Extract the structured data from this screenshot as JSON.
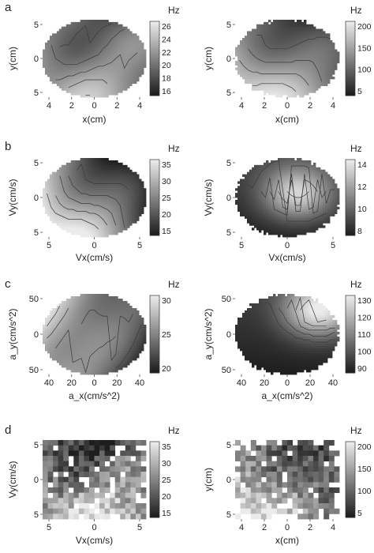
{
  "chart_data": [
    {
      "panel": "a",
      "side": "left",
      "type": "heatmap",
      "unit": "Hz",
      "xlabel": "x(cm)",
      "ylabel": "y(cm)",
      "xticks": [
        "4",
        "2",
        "0",
        "2",
        "4"
      ],
      "yticks": [
        "5",
        "0",
        "5"
      ],
      "cbticks": [
        "26",
        "24",
        "22",
        "20",
        "18",
        "16"
      ],
      "range": [
        16,
        26.5
      ],
      "shape": "ellipse",
      "style": "smooth",
      "grad": [
        [
          -0.1,
          0.35
        ],
        [
          0.9,
          -0.45
        ]
      ],
      "contours": 6
    },
    {
      "panel": "a",
      "side": "right",
      "type": "heatmap",
      "unit": "Hz",
      "xlabel": "x(cm)",
      "ylabel": "y(cm)",
      "xticks": [
        "4",
        "2",
        "0",
        "2",
        "4"
      ],
      "yticks": [
        "5",
        "0",
        "5"
      ],
      "cbticks": [
        "200",
        "150",
        "100",
        "5"
      ],
      "range": [
        5,
        200
      ],
      "shape": "blocky",
      "style": "smooth",
      "grad": [
        [
          -0.4,
          0.6
        ],
        [
          0.7,
          -0.4
        ]
      ],
      "contours": 5
    },
    {
      "panel": "b",
      "side": "left",
      "type": "heatmap",
      "unit": "Hz",
      "xlabel": "Vx(cm/s)",
      "ylabel": "Vy(cm/s)",
      "xticks": [
        "5",
        "0",
        "5"
      ],
      "yticks": [
        "5",
        "0",
        "5"
      ],
      "cbticks": [
        "35",
        "30",
        "25",
        "20",
        "15"
      ],
      "range": [
        12,
        38
      ],
      "shape": "ellipse",
      "style": "smooth",
      "grad": [
        [
          -0.9,
          0.6
        ],
        [
          0.9,
          -0.3
        ]
      ],
      "contours": 6
    },
    {
      "panel": "b",
      "side": "right",
      "type": "heatmap",
      "unit": "Hz",
      "xlabel": "Vx(cm/s)",
      "ylabel": "Vy(cm/s)",
      "xticks": [
        "5",
        "0",
        "5"
      ],
      "yticks": [
        "5",
        "0",
        "5"
      ],
      "cbticks": [
        "14",
        "12",
        "10",
        "8"
      ],
      "range": [
        7,
        14.5
      ],
      "shape": "blocky",
      "style": "peak",
      "grad": [
        [
          0.2,
          -0.1
        ],
        [
          0.8,
          0.7
        ]
      ],
      "contours": 6
    },
    {
      "panel": "c",
      "side": "left",
      "type": "heatmap",
      "unit": "Hz",
      "xlabel": "a_x(cm/s^2)",
      "ylabel": "a_y(cm/s^2)",
      "xticks": [
        "40",
        "20",
        "0",
        "20",
        "40"
      ],
      "yticks": [
        "50",
        "0",
        "50"
      ],
      "cbticks": [
        "30",
        "25",
        "20"
      ],
      "range": [
        16,
        31
      ],
      "shape": "ellipse",
      "style": "smooth",
      "grad": [
        [
          -0.7,
          -0.2
        ],
        [
          0.9,
          0.2
        ]
      ],
      "contours": 6
    },
    {
      "panel": "c",
      "side": "right",
      "type": "heatmap",
      "unit": "Hz",
      "xlabel": "a_x(cm/s^2)",
      "ylabel": "a_y(cm/s^2)",
      "xticks": [
        "40",
        "20",
        "0",
        "20",
        "40"
      ],
      "yticks": [
        "50",
        "0",
        "50"
      ],
      "cbticks": [
        "130",
        "120",
        "110",
        "100",
        "90"
      ],
      "range": [
        88,
        136
      ],
      "shape": "blocky",
      "style": "peak",
      "grad": [
        [
          0.6,
          -0.6
        ],
        [
          0.9,
          0.6
        ]
      ],
      "contours": 6
    },
    {
      "panel": "d",
      "side": "left",
      "type": "heatmap",
      "unit": "Hz",
      "xlabel": "Vx(cm/s)",
      "ylabel": "Vy(cm/s)",
      "xticks": [
        "5",
        "0",
        "5"
      ],
      "yticks": [
        "5",
        "0",
        "5"
      ],
      "cbticks": [
        "35",
        "30",
        "25",
        "20",
        "15"
      ],
      "range": [
        12,
        38
      ],
      "shape": "rect",
      "style": "pixel",
      "grad": [
        [
          0,
          0.7
        ],
        [
          0.9,
          -0.3
        ]
      ],
      "contours": 0
    },
    {
      "panel": "d",
      "side": "right",
      "type": "heatmap",
      "unit": "Hz",
      "xlabel": "x(cm)",
      "ylabel": "y(cm)",
      "xticks": [
        "4",
        "2",
        "0",
        "2",
        "4"
      ],
      "yticks": [
        "5",
        "0",
        "5"
      ],
      "cbticks": [
        "200",
        "150",
        "100",
        "5"
      ],
      "range": [
        5,
        200
      ],
      "shape": "pixel",
      "style": "pixel",
      "grad": [
        [
          -0.6,
          0.5
        ],
        [
          0.6,
          -0.5
        ]
      ],
      "contours": 0
    }
  ]
}
